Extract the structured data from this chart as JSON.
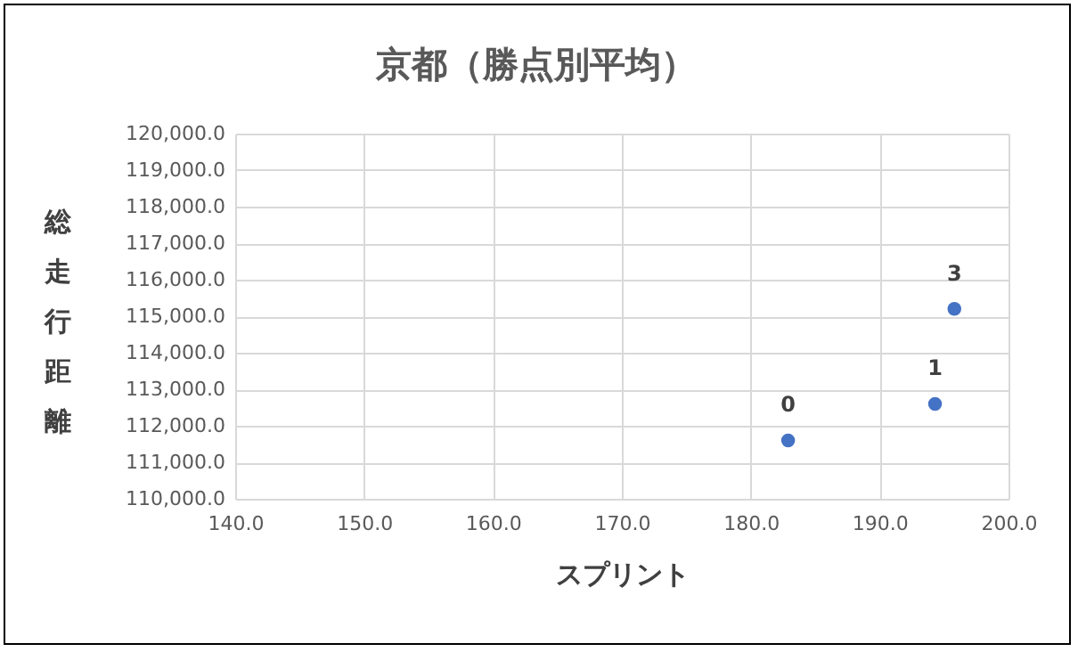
{
  "chart_data": {
    "type": "scatter",
    "title": "京都（勝点別平均）",
    "xlabel": "スプリント",
    "ylabel": "総走行距離",
    "series": [
      {
        "color": "#4472c4",
        "x": [
          182.9,
          194.3,
          195.8
        ],
        "values": [
          111600,
          112600,
          115200
        ]
      }
    ],
    "annotations": [
      {
        "text": "0",
        "x": 182.9,
        "y": 111600
      },
      {
        "text": "1",
        "x": 194.3,
        "y": 112600
      },
      {
        "text": "3",
        "x": 195.8,
        "y": 115200
      }
    ],
    "xlim": [
      140,
      200
    ],
    "ylim": [
      110000,
      120000
    ],
    "xticks": [
      {
        "value": 140,
        "label": "140.0"
      },
      {
        "value": 150,
        "label": "150.0"
      },
      {
        "value": 160,
        "label": "160.0"
      },
      {
        "value": 170,
        "label": "170.0"
      },
      {
        "value": 180,
        "label": "180.0"
      },
      {
        "value": 190,
        "label": "190.0"
      },
      {
        "value": 200,
        "label": "200.0"
      }
    ],
    "yticks": [
      {
        "value": 110000,
        "label": "110,000.0"
      },
      {
        "value": 111000,
        "label": "111,000.0"
      },
      {
        "value": 112000,
        "label": "112,000.0"
      },
      {
        "value": 113000,
        "label": "113,000.0"
      },
      {
        "value": 114000,
        "label": "114,000.0"
      },
      {
        "value": 115000,
        "label": "115,000.0"
      },
      {
        "value": 116000,
        "label": "116,000.0"
      },
      {
        "value": 117000,
        "label": "117,000.0"
      },
      {
        "value": 118000,
        "label": "118,000.0"
      },
      {
        "value": 119000,
        "label": "119,000.0"
      },
      {
        "value": 120000,
        "label": "120,000.0"
      }
    ],
    "grid": true,
    "marker": "circle"
  }
}
